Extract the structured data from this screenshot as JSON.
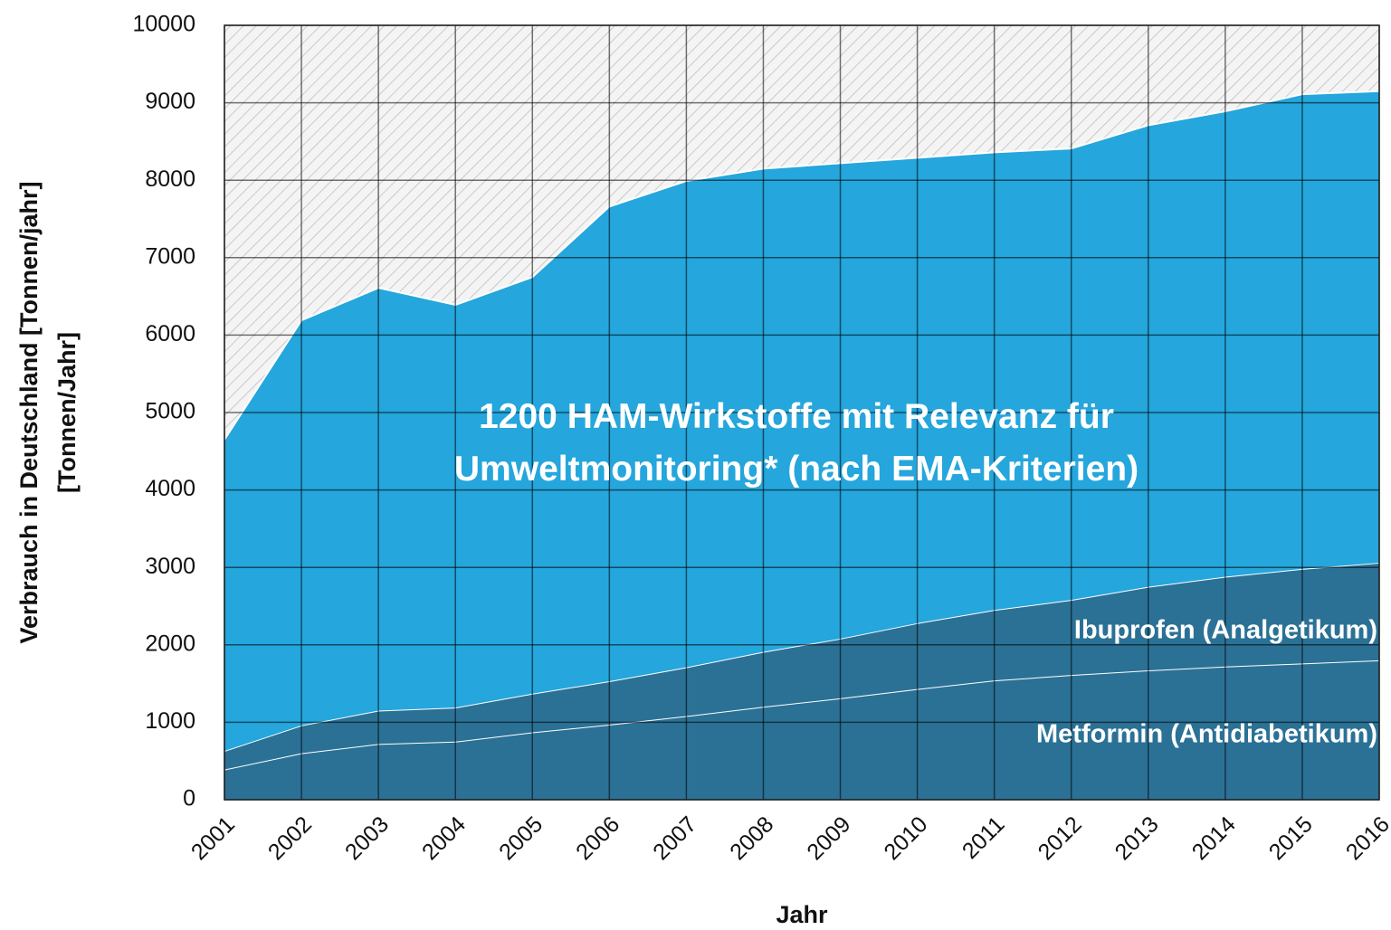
{
  "chart_data": {
    "type": "stacked_area",
    "x_label": "Jahr",
    "y_label": [
      "Verbrauch in Deutschland [Tonnen/jahr]",
      "[Tonnen/Jahr]"
    ],
    "x": [
      2001,
      2002,
      2003,
      2004,
      2005,
      2006,
      2007,
      2008,
      2009,
      2010,
      2011,
      2012,
      2013,
      2014,
      2015,
      2016
    ],
    "series": [
      {
        "name": "Metformin (Antidiabetikum)",
        "color": "#2b7196",
        "values": [
          390,
          600,
          720,
          750,
          870,
          970,
          1080,
          1200,
          1310,
          1430,
          1540,
          1610,
          1670,
          1720,
          1760,
          1800
        ]
      },
      {
        "name": "Ibuprofen (Analgetikum)",
        "color": "#2b7196",
        "values": [
          240,
          360,
          430,
          440,
          500,
          560,
          630,
          710,
          770,
          850,
          910,
          970,
          1080,
          1160,
          1220,
          1260
        ]
      },
      {
        "name": "1200 HAM-Wirkstoffe mit Relevanz für Umweltmonitoring* (nach EMA-Kriterien)",
        "color": "#25a6dc",
        "values": [
          4020,
          5230,
          5460,
          5200,
          5380,
          6130,
          6280,
          6240,
          6140,
          6010,
          5910,
          5830,
          5960,
          6010,
          6130,
          6090
        ]
      }
    ],
    "xlim": [
      2001,
      2016
    ],
    "xticks": [
      2001,
      2002,
      2003,
      2004,
      2005,
      2006,
      2007,
      2008,
      2009,
      2010,
      2011,
      2012,
      2013,
      2014,
      2015,
      2016
    ],
    "ylim": [
      0,
      10000
    ],
    "yticks": [
      0,
      1000,
      2000,
      3000,
      4000,
      5000,
      6000,
      7000,
      8000,
      9000,
      10000
    ],
    "grid": true
  }
}
